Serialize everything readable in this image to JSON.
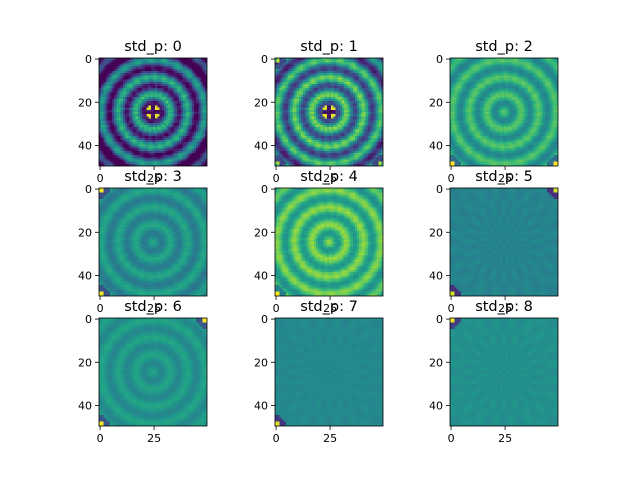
{
  "chart_data": [
    {
      "type": "heatmap",
      "title": "std_p: 0",
      "xlim": [
        0,
        49
      ],
      "ylim": [
        49,
        0
      ],
      "xticks": [
        "0",
        "25"
      ],
      "yticks": [
        "0",
        "20",
        "40"
      ],
      "pattern": "concentric-rings",
      "contrast": 1.0,
      "base_level": 0.35,
      "edge_falloff": 0.85,
      "corner_spots": [],
      "center_marker": true,
      "colormap": "viridis"
    },
    {
      "type": "heatmap",
      "title": "std_p: 1",
      "xlim": [
        0,
        49
      ],
      "ylim": [
        49,
        0
      ],
      "xticks": [
        "0",
        "25"
      ],
      "yticks": [
        "0",
        "20",
        "40"
      ],
      "pattern": "concentric-rings",
      "contrast": 0.95,
      "base_level": 0.5,
      "edge_falloff": 0.5,
      "corner_spots": [
        "top-left",
        "bottom-left",
        "bottom-right"
      ],
      "center_marker": true,
      "colormap": "viridis"
    },
    {
      "type": "heatmap",
      "title": "std_p: 2",
      "xlim": [
        0,
        49
      ],
      "ylim": [
        49,
        0
      ],
      "xticks": [
        "0",
        "25"
      ],
      "yticks": [
        "0",
        "20",
        "40"
      ],
      "pattern": "concentric-rings",
      "contrast": 0.45,
      "base_level": 0.6,
      "edge_falloff": 0.1,
      "corner_spots": [
        "bottom-left",
        "bottom-right"
      ],
      "center_marker": false,
      "colormap": "viridis"
    },
    {
      "type": "heatmap",
      "title": "std_p: 3",
      "xlim": [
        0,
        49
      ],
      "ylim": [
        49,
        0
      ],
      "xticks": [
        "0",
        "25"
      ],
      "yticks": [
        "0",
        "20",
        "40"
      ],
      "pattern": "concentric-rings",
      "contrast": 0.3,
      "base_level": 0.5,
      "edge_falloff": 0.05,
      "corner_spots": [
        "top-left",
        "bottom-left"
      ],
      "center_marker": false,
      "colormap": "viridis"
    },
    {
      "type": "heatmap",
      "title": "std_p: 4",
      "xlim": [
        0,
        49
      ],
      "ylim": [
        49,
        0
      ],
      "xticks": [
        "0",
        "25"
      ],
      "yticks": [
        "0",
        "20",
        "40"
      ],
      "pattern": "concentric-rings",
      "contrast": 0.5,
      "base_level": 0.68,
      "edge_falloff": 0.15,
      "corner_spots": [
        "bottom-left"
      ],
      "center_marker": false,
      "colormap": "viridis"
    },
    {
      "type": "heatmap",
      "title": "std_p: 5",
      "xlim": [
        0,
        49
      ],
      "ylim": [
        49,
        0
      ],
      "xticks": [
        "0",
        "25"
      ],
      "yticks": [
        "0",
        "20",
        "40"
      ],
      "pattern": "faint-radial",
      "contrast": 0.12,
      "base_level": 0.45,
      "edge_falloff": 0.0,
      "corner_spots": [
        "top-right",
        "bottom-left"
      ],
      "center_marker": false,
      "colormap": "viridis"
    },
    {
      "type": "heatmap",
      "title": "std_p: 6",
      "xlim": [
        0,
        49
      ],
      "ylim": [
        49,
        0
      ],
      "xticks": [
        "0",
        "25"
      ],
      "yticks": [
        "0",
        "20",
        "40"
      ],
      "pattern": "faint-rings",
      "contrast": 0.2,
      "base_level": 0.52,
      "edge_falloff": 0.0,
      "corner_spots": [
        "top-right",
        "bottom-left"
      ],
      "center_marker": false,
      "colormap": "viridis"
    },
    {
      "type": "heatmap",
      "title": "std_p: 7",
      "xlim": [
        0,
        49
      ],
      "ylim": [
        49,
        0
      ],
      "xticks": [
        "0",
        "25"
      ],
      "yticks": [
        "0",
        "20",
        "40"
      ],
      "pattern": "faint-radial",
      "contrast": 0.08,
      "base_level": 0.47,
      "edge_falloff": 0.0,
      "corner_spots": [
        "bottom-left"
      ],
      "center_marker": false,
      "colormap": "viridis"
    },
    {
      "type": "heatmap",
      "title": "std_p: 8",
      "xlim": [
        0,
        49
      ],
      "ylim": [
        49,
        0
      ],
      "xticks": [
        "0",
        "25"
      ],
      "yticks": [
        "0",
        "20",
        "40"
      ],
      "pattern": "faint-radial",
      "contrast": 0.1,
      "base_level": 0.5,
      "edge_falloff": 0.0,
      "corner_spots": [
        "top-left"
      ],
      "center_marker": false,
      "colormap": "viridis"
    }
  ]
}
